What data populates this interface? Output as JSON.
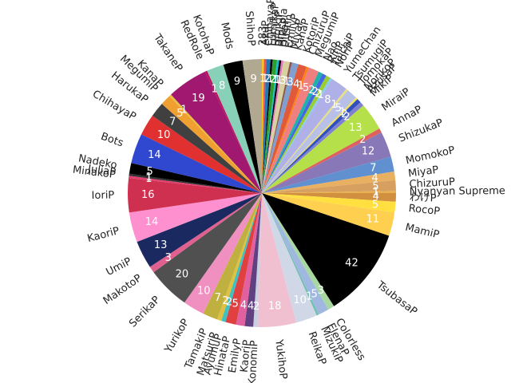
{
  "chart_data": {
    "type": "pie",
    "title": "",
    "start_angle_deg": 90,
    "direction": "clockwise",
    "slices": [
      {
        "label": "283",
        "value": 1,
        "color": "#f5c518"
      },
      {
        "label": "AzuP",
        "value": 1,
        "color": "#e8505b"
      },
      {
        "label": "ChihayaP",
        "value": 2,
        "color": "#1f77b4"
      },
      {
        "label": "FumikaP",
        "value": 1,
        "color": "#000000"
      },
      {
        "label": "HibikiP",
        "value": 2,
        "color": "#2ca02c"
      },
      {
        "label": "Brocola",
        "value": 1,
        "color": "#17becf"
      },
      {
        "label": "HikoP",
        "value": 1,
        "color": "#000000"
      },
      {
        "label": "Dustin",
        "value": 1,
        "color": "#e377c2"
      },
      {
        "label": "EmilyP",
        "value": 3,
        "color": "#d9d0a0"
      },
      {
        "label": "MiyaP",
        "value": 1,
        "color": "#8c564b"
      },
      {
        "label": "KanaP",
        "value": 3,
        "color": "#7f9fd0"
      },
      {
        "label": "KotoriP",
        "value": 4,
        "color": "#e05a3a"
      },
      {
        "label": "ChizuruP",
        "value": 1,
        "color": "#ff7f0e"
      },
      {
        "label": "MegumiP",
        "value": 5,
        "color": "#f08080"
      },
      {
        "label": "Nao",
        "value": 2,
        "color": "#20b2aa"
      },
      {
        "label": "RinP",
        "value": 2,
        "color": "#4169e1"
      },
      {
        "label": "TaichiP",
        "value": 2,
        "color": "#9acd32"
      },
      {
        "label": "NoriP",
        "value": 1,
        "color": "#87ceeb"
      },
      {
        "label": "YumeChan",
        "value": 8,
        "color": "#b0b0e8"
      },
      {
        "label": "TsumugiP",
        "value": 1,
        "color": "#e8e080"
      },
      {
        "label": "TomokaP",
        "value": 5,
        "color": "#b8c0e8"
      },
      {
        "label": "NorikoP",
        "value": 1,
        "color": "#f0e060"
      },
      {
        "label": "AzusaP",
        "value": 2,
        "color": "#3050c0"
      },
      {
        "label": "MikiP",
        "value": 2,
        "color": "#8080d0"
      },
      {
        "label": "MiraiP",
        "value": 13,
        "color": "#b5e04a"
      },
      {
        "label": "AnnaP",
        "value": 2,
        "color": "#e06060"
      },
      {
        "label": "ShizukaP",
        "value": 12,
        "color": "#8878b8"
      },
      {
        "label": "MomokoP",
        "value": 7,
        "color": "#6090d0"
      },
      {
        "label": "MiyaP",
        "value": 4,
        "color": "#e8b060"
      },
      {
        "label": "ChizuruP",
        "value": 5,
        "color": "#d8a060"
      },
      {
        "label": "Nyanyan Supreme",
        "value": 1,
        "color": "#e8b050"
      },
      {
        "label": "わけP",
        "value": 4,
        "color": "#d09040"
      },
      {
        "label": "RocoP",
        "value": 5,
        "color": "#ffe040"
      },
      {
        "label": "MamiP",
        "value": 11,
        "color": "#ffd050"
      },
      {
        "label": "TsubasaP",
        "value": 42,
        "color": "#000000"
      },
      {
        "label": "Colorless",
        "value": 3,
        "color": "#a8d8a0"
      },
      {
        "label": "ElenaP",
        "value": 5,
        "color": "#a0b8e0"
      },
      {
        "label": "MizukiP",
        "value": 1,
        "color": "#70c0b0"
      },
      {
        "label": "ReikaP",
        "value": 10,
        "color": "#d0d8e8"
      },
      {
        "label": "YukihoP",
        "value": 18,
        "color": "#f0c0d0"
      },
      {
        "label": "KonomiP",
        "value": 2,
        "color": "#c8d0e0"
      },
      {
        "label": "KaoriP",
        "value": 4,
        "color": "#604080"
      },
      {
        "label": "EmilyP",
        "value": 4,
        "color": "#e060a0"
      },
      {
        "label": "HinataP",
        "value": 5,
        "color": "#e04040"
      },
      {
        "label": "AyumuP",
        "value": 2,
        "color": "#40c0c0"
      },
      {
        "label": "MatsuriP",
        "value": 2,
        "color": "#e0c040"
      },
      {
        "label": "TamakiP",
        "value": 7,
        "color": "#c0b040"
      },
      {
        "label": "YurikoP",
        "value": 10,
        "color": "#f090c0"
      },
      {
        "label": "SerikaP",
        "value": 20,
        "color": "#505050"
      },
      {
        "label": "MakotoP",
        "value": 3,
        "color": "#e06090"
      },
      {
        "label": "UmiP",
        "value": 13,
        "color": "#1a2a60"
      },
      {
        "label": "KaoriP",
        "value": 14,
        "color": "#ff90d0"
      },
      {
        "label": "IoriP",
        "value": 16,
        "color": "#d03050"
      },
      {
        "label": "MinakoP",
        "value": 1,
        "color": "#e04070"
      },
      {
        "label": "JuliaP",
        "value": 1,
        "color": "#303030"
      },
      {
        "label": "Nadeko",
        "value": 5,
        "color": "#000000"
      },
      {
        "label": "Bots",
        "value": 14,
        "color": "#3048d0"
      },
      {
        "label": "ChihayaP",
        "value": 10,
        "color": "#e03030"
      },
      {
        "label": "HarukaP",
        "value": 7,
        "color": "#404040"
      },
      {
        "label": "MegumiP",
        "value": 5,
        "color": "#f0a030"
      },
      {
        "label": "KanaP",
        "value": 1,
        "color": "#e8c040"
      },
      {
        "label": "TakaneP",
        "value": 19,
        "color": "#a01870"
      },
      {
        "label": "RedRole",
        "value": 1,
        "color": "#c01060"
      },
      {
        "label": "KotohaP",
        "value": 8,
        "color": "#88d0b8"
      },
      {
        "label": "Mods",
        "value": 9,
        "color": "#000000"
      },
      {
        "label": "ShihoP",
        "value": 9,
        "color": "#b0a890"
      }
    ]
  }
}
